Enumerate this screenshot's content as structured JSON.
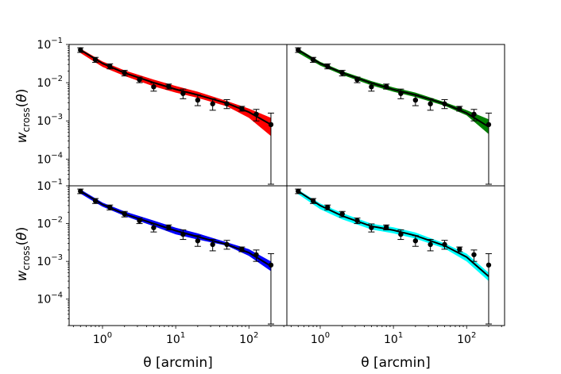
{
  "chart_data": {
    "type": "scatter",
    "layout": "2x2 grid, shared axes",
    "xscale": "log",
    "yscale": "log",
    "xlim": [
      0.35,
      330
    ],
    "ylim": [
      2e-05,
      0.1
    ],
    "xlabel": "θ [arcmin]",
    "ylabel": "w_cross(θ)",
    "xticks": [
      {
        "value": 1,
        "base": "10",
        "exp": "0"
      },
      {
        "value": 10,
        "base": "10",
        "exp": "1"
      },
      {
        "value": 100,
        "base": "10",
        "exp": "2"
      }
    ],
    "yticks": [
      {
        "value": 0.1,
        "base": "10",
        "exp": "−1"
      },
      {
        "value": 0.01,
        "base": "10",
        "exp": "−2"
      },
      {
        "value": 0.001,
        "base": "10",
        "exp": "−3"
      },
      {
        "value": 0.0001,
        "base": "10",
        "exp": "−4"
      }
    ],
    "data_points": {
      "x": [
        0.5,
        0.8,
        1.26,
        2.0,
        3.2,
        5.0,
        8.0,
        12.6,
        20.0,
        32.0,
        50.0,
        80.0,
        126.0,
        200.0
      ],
      "y": [
        0.072,
        0.04,
        0.027,
        0.018,
        0.012,
        0.0078,
        0.008,
        0.0052,
        0.0035,
        0.0028,
        0.0028,
        0.0021,
        0.0015,
        0.0008
      ],
      "ylo": [
        0.062,
        0.034,
        0.023,
        0.015,
        0.01,
        0.006,
        0.0068,
        0.0038,
        0.0025,
        0.0019,
        0.0021,
        0.0018,
        0.001,
        2.2e-05
      ],
      "yhi": [
        0.082,
        0.046,
        0.031,
        0.021,
        0.014,
        0.0098,
        0.0092,
        0.0068,
        0.0048,
        0.0038,
        0.0036,
        0.0024,
        0.002,
        0.0016
      ]
    },
    "panels": [
      {
        "color": "#ff0000",
        "band_x": [
          0.5,
          1,
          2,
          5,
          10,
          20,
          50,
          100,
          200
        ],
        "band_lo": [
          0.06,
          0.026,
          0.015,
          0.008,
          0.0055,
          0.004,
          0.0024,
          0.0012,
          0.0004
        ],
        "band_hi": [
          0.078,
          0.036,
          0.021,
          0.012,
          0.0082,
          0.0058,
          0.0033,
          0.0021,
          0.0012
        ],
        "model_x": [
          0.5,
          1,
          2,
          5,
          10,
          20,
          50,
          100,
          200
        ],
        "model_y": [
          0.072,
          0.032,
          0.018,
          0.01,
          0.0067,
          0.0048,
          0.0029,
          0.0017,
          0.0008
        ]
      },
      {
        "color": "#007f00",
        "band_x": [
          0.5,
          1,
          2,
          5,
          10,
          20,
          50,
          100,
          200
        ],
        "band_lo": [
          0.06,
          0.028,
          0.016,
          0.0085,
          0.0058,
          0.0042,
          0.0025,
          0.0014,
          0.00045
        ],
        "band_hi": [
          0.078,
          0.035,
          0.02,
          0.011,
          0.0075,
          0.0055,
          0.0031,
          0.0019,
          0.0011
        ],
        "model_x": [
          0.5,
          1,
          2,
          5,
          10,
          20,
          50,
          100,
          200
        ],
        "model_y": [
          0.072,
          0.032,
          0.018,
          0.0098,
          0.0066,
          0.0048,
          0.0028,
          0.0016,
          0.0007
        ]
      },
      {
        "color": "#0000ff",
        "band_x": [
          0.5,
          1,
          2,
          5,
          10,
          20,
          50,
          100,
          200
        ],
        "band_lo": [
          0.062,
          0.028,
          0.016,
          0.0085,
          0.0052,
          0.0038,
          0.0026,
          0.0014,
          0.00055
        ],
        "band_hi": [
          0.08,
          0.036,
          0.021,
          0.012,
          0.0078,
          0.0055,
          0.0032,
          0.0021,
          0.001
        ],
        "model_x": [
          0.5,
          1,
          2,
          5,
          10,
          20,
          50,
          100,
          200
        ],
        "model_y": [
          0.072,
          0.032,
          0.018,
          0.01,
          0.0065,
          0.0045,
          0.0028,
          0.0017,
          0.00075
        ]
      },
      {
        "color": "#00ffff",
        "band_x": [
          0.5,
          1,
          2,
          5,
          10,
          20,
          50,
          100,
          200
        ],
        "band_lo": [
          0.06,
          0.024,
          0.013,
          0.007,
          0.0055,
          0.004,
          0.0022,
          0.001,
          0.0003
        ],
        "band_hi": [
          0.078,
          0.034,
          0.019,
          0.01,
          0.008,
          0.0058,
          0.003,
          0.0016,
          0.0005
        ],
        "model_x": [
          0.5,
          1,
          2,
          5,
          10,
          20,
          50,
          100,
          200
        ],
        "model_y": [
          0.072,
          0.03,
          0.016,
          0.0085,
          0.0067,
          0.0048,
          0.0026,
          0.0013,
          0.0004
        ]
      }
    ]
  }
}
